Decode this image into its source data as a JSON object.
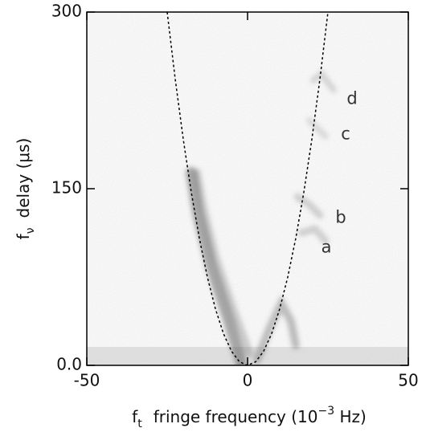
{
  "chart_data": {
    "type": "line",
    "xlabel": {
      "symbol": "f",
      "subscript": "t",
      "text": "fringe frequency (10",
      "superscript": "−3",
      "suffix": " Hz)"
    },
    "ylabel": {
      "symbol": "f",
      "subscript": "ν",
      "text": "delay (μs)"
    },
    "x": [
      -25,
      -22.5,
      -20,
      -17.5,
      -15,
      -12.5,
      -10,
      -7.5,
      -5,
      -2.5,
      0,
      2.5,
      5,
      7.5,
      10,
      12.5,
      15,
      17.5,
      20,
      22.5,
      25
    ],
    "values": [
      300,
      243,
      192,
      147,
      108,
      75,
      48,
      27,
      12,
      3,
      0,
      3,
      12,
      27,
      48,
      75,
      108,
      147,
      192,
      243,
      300
    ],
    "color": "#000",
    "dashed": true,
    "xlim": [
      -50,
      50
    ],
    "ylim": [
      0,
      300
    ],
    "xticks": [
      -50,
      0,
      50
    ],
    "yticks": [
      {
        "value": 0,
        "label": "0.0"
      },
      150,
      300
    ],
    "annotations": [
      {
        "text": "a",
        "x": 24.5,
        "y": 100
      },
      {
        "text": "b",
        "x": 29,
        "y": 125
      },
      {
        "text": "c",
        "x": 30.5,
        "y": 196
      },
      {
        "text": "d",
        "x": 32.5,
        "y": 226
      }
    ]
  }
}
